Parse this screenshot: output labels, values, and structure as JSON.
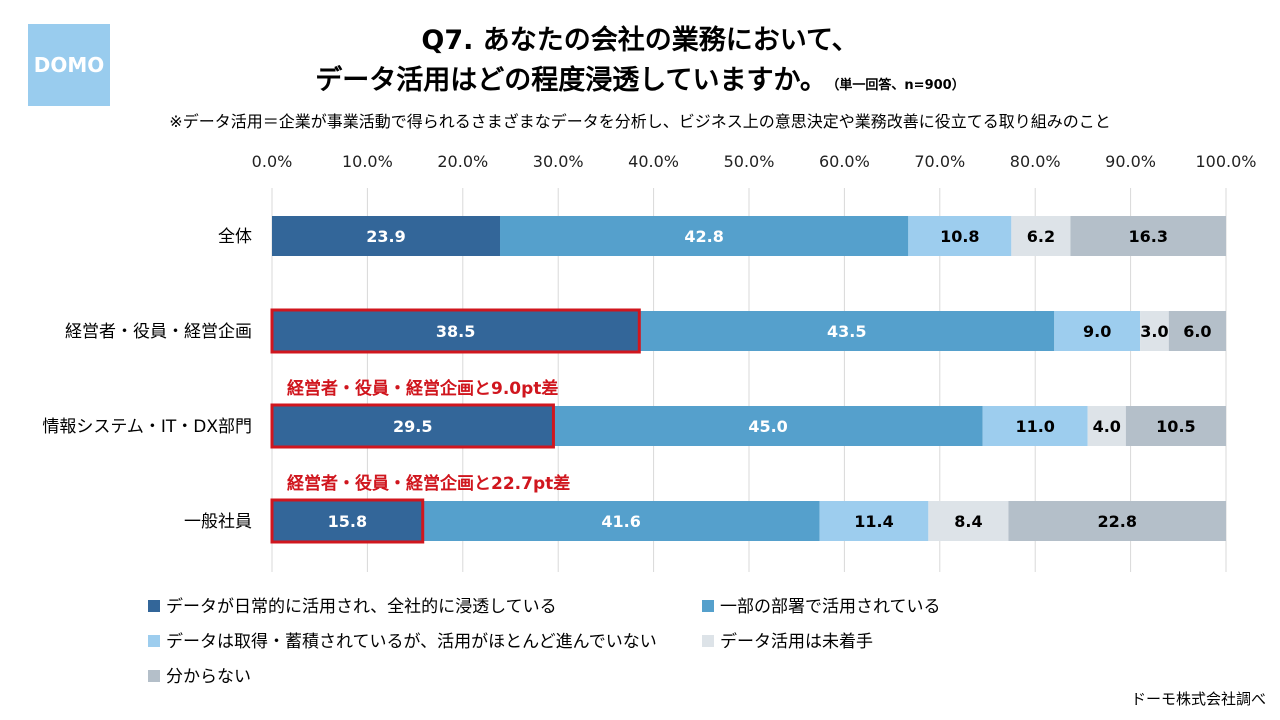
{
  "logo": {
    "text": "DOMO"
  },
  "title": {
    "line1": "Q7. あなたの会社の業務において、",
    "line2": "データ活用はどの程度浸透していますか。",
    "sub": "（単一回答、n=900）"
  },
  "note": "※データ活用＝企業が事業活動で得られるさまざまなデータを分析し、ビジネス上の意思決定や業務改善に役立てる取り組みのこと",
  "source": "ドーモ株式会社調べ",
  "chart_data": {
    "type": "bar",
    "orientation": "horizontal",
    "stacked": true,
    "xlim": [
      0,
      100
    ],
    "x_ticks": [
      "0.0%",
      "10.0%",
      "20.0%",
      "30.0%",
      "40.0%",
      "50.0%",
      "60.0%",
      "70.0%",
      "80.0%",
      "90.0%",
      "100.0%"
    ],
    "categories": [
      "全体",
      "経営者・役員・経営企画",
      "情報システム・IT・DX部門",
      "一般社員"
    ],
    "series": [
      {
        "name": "データが日常的に活用され、全社的に浸透している",
        "color": "#336699",
        "text_color": "#ffffff",
        "values": [
          23.9,
          38.5,
          29.5,
          15.8
        ]
      },
      {
        "name": "一部の部署で活用されている",
        "color": "#55a0cc",
        "text_color": "#ffffff",
        "values": [
          42.8,
          43.5,
          45.0,
          41.6
        ]
      },
      {
        "name": "データは取得・蓄積されているが、活用がほとんど進んでいない",
        "color": "#9dcdee",
        "text_color": "#000000",
        "values": [
          10.8,
          9.0,
          11.0,
          11.4
        ]
      },
      {
        "name": "データ活用は未着手",
        "color": "#dde3e8",
        "text_color": "#000000",
        "values": [
          6.2,
          3.0,
          4.0,
          8.4
        ]
      },
      {
        "name": "分からない",
        "color": "#b4bfc9",
        "text_color": "#000000",
        "values": [
          16.3,
          6.0,
          10.5,
          22.8
        ]
      }
    ],
    "value_labels": [
      [
        "23.9",
        "42.8",
        "10.8",
        "6.2",
        "16.3"
      ],
      [
        "38.5",
        "43.5",
        "9.0",
        "3.0",
        "6.0"
      ],
      [
        "29.5",
        "45.0",
        "11.0",
        "4.0",
        "10.5"
      ],
      [
        "15.8",
        "41.6",
        "11.4",
        "8.4",
        "22.8"
      ]
    ],
    "highlight": {
      "color": "#d0161e",
      "series_index": 0,
      "rows": [
        1,
        2,
        3
      ],
      "annotations": [
        {
          "row": 2,
          "text": "経営者・役員・経営企画と9.0pt差"
        },
        {
          "row": 3,
          "text": "経営者・役員・経営企画と22.7pt差"
        }
      ]
    }
  }
}
